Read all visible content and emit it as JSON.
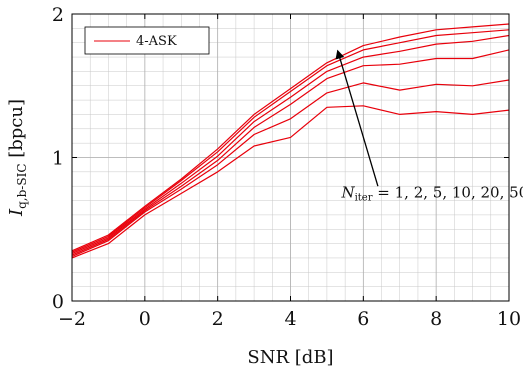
{
  "chart_data": {
    "type": "line",
    "title": "",
    "xlabel": "SNR [dB]",
    "ylabel_main": "I",
    "ylabel_sub": "q,b-SIC",
    "ylabel_unit": " [bpcu]",
    "xlim": [
      -2,
      10
    ],
    "ylim": [
      0,
      2
    ],
    "xticks": [
      -2,
      0,
      2,
      4,
      6,
      8,
      10
    ],
    "yticks": [
      0,
      1,
      2
    ],
    "x_minor_step": 0.5,
    "y_minor_step": 0.1,
    "grid": true,
    "legend": {
      "entries": [
        "4-ASK"
      ],
      "position": "top-left"
    },
    "color": "#e8000b",
    "x": [
      -2,
      -1,
      0,
      1,
      2,
      3,
      4,
      5,
      6,
      7,
      8,
      9,
      10
    ],
    "series": [
      {
        "values": [
          0.3,
          0.4,
          0.6,
          0.75,
          0.9,
          1.08,
          1.14,
          1.35,
          1.36,
          1.3,
          1.32,
          1.3,
          1.33
        ]
      },
      {
        "values": [
          0.31,
          0.42,
          0.62,
          0.78,
          0.95,
          1.16,
          1.27,
          1.45,
          1.52,
          1.47,
          1.51,
          1.5,
          1.54
        ]
      },
      {
        "values": [
          0.32,
          0.43,
          0.63,
          0.8,
          0.98,
          1.21,
          1.37,
          1.55,
          1.64,
          1.65,
          1.69,
          1.69,
          1.75
        ]
      },
      {
        "values": [
          0.33,
          0.44,
          0.64,
          0.82,
          1.01,
          1.25,
          1.42,
          1.6,
          1.7,
          1.74,
          1.79,
          1.81,
          1.85
        ]
      },
      {
        "values": [
          0.34,
          0.45,
          0.65,
          0.84,
          1.04,
          1.28,
          1.46,
          1.64,
          1.75,
          1.8,
          1.85,
          1.87,
          1.89
        ]
      },
      {
        "values": [
          0.35,
          0.46,
          0.66,
          0.85,
          1.06,
          1.3,
          1.48,
          1.66,
          1.78,
          1.84,
          1.89,
          1.91,
          1.93
        ]
      }
    ],
    "annotation": {
      "text_main": "N",
      "text_sub": "iter",
      "text_rest": " = 1, 2, 5, 10, 20, 50",
      "label_at": [
        5.4,
        0.72
      ],
      "arrow_from": [
        6.4,
        0.8
      ],
      "arrow_to": [
        5.3,
        1.74
      ]
    }
  }
}
